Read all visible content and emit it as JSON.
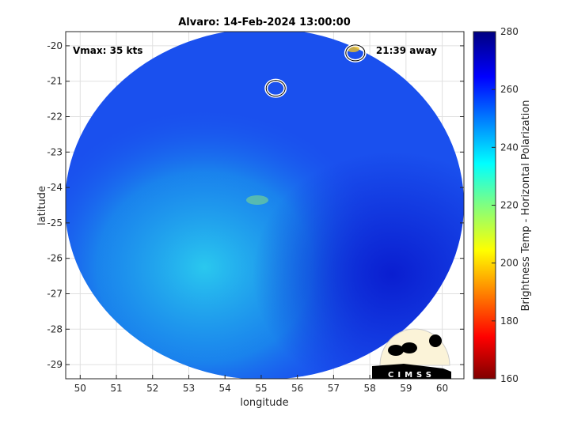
{
  "chart_data": {
    "type": "heatmap",
    "title": "Alvaro: 14-Feb-2024 13:00:00",
    "xlabel": "longitude",
    "ylabel": "latitude",
    "xlim": [
      49.6,
      60.6
    ],
    "ylim": [
      -29.4,
      -19.6
    ],
    "xticks": [
      50,
      51,
      52,
      53,
      54,
      55,
      56,
      57,
      58,
      59,
      60
    ],
    "yticks": [
      -20,
      -21,
      -22,
      -23,
      -24,
      -25,
      -26,
      -27,
      -28,
      -29
    ],
    "grid": true,
    "annotations": {
      "vmax": "Vmax: 35 kts",
      "away": "21:39 away"
    },
    "colorbar": {
      "label": "Brightness Temp - Horizontal Polarization",
      "range": [
        160,
        280
      ],
      "ticks": [
        160,
        180,
        200,
        220,
        240,
        260,
        280
      ],
      "colormap": "jet"
    },
    "contours": [
      {
        "lon": 55.4,
        "lat": -21.2
      },
      {
        "lon": 57.6,
        "lat": -20.2
      }
    ]
  },
  "logo": "CIMSS"
}
